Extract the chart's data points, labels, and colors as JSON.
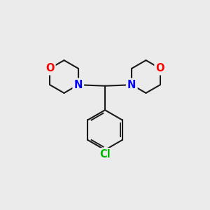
{
  "background_color": "#ebebeb",
  "bond_color": "#1a1a1a",
  "N_color": "#0000ff",
  "O_color": "#ff0000",
  "Cl_color": "#00bb00",
  "bond_width": 1.5,
  "font_size": 10.5,
  "fig_size": [
    3.0,
    3.0
  ],
  "dpi": 100,
  "xlim": [
    0,
    10
  ],
  "ylim": [
    0,
    10
  ]
}
